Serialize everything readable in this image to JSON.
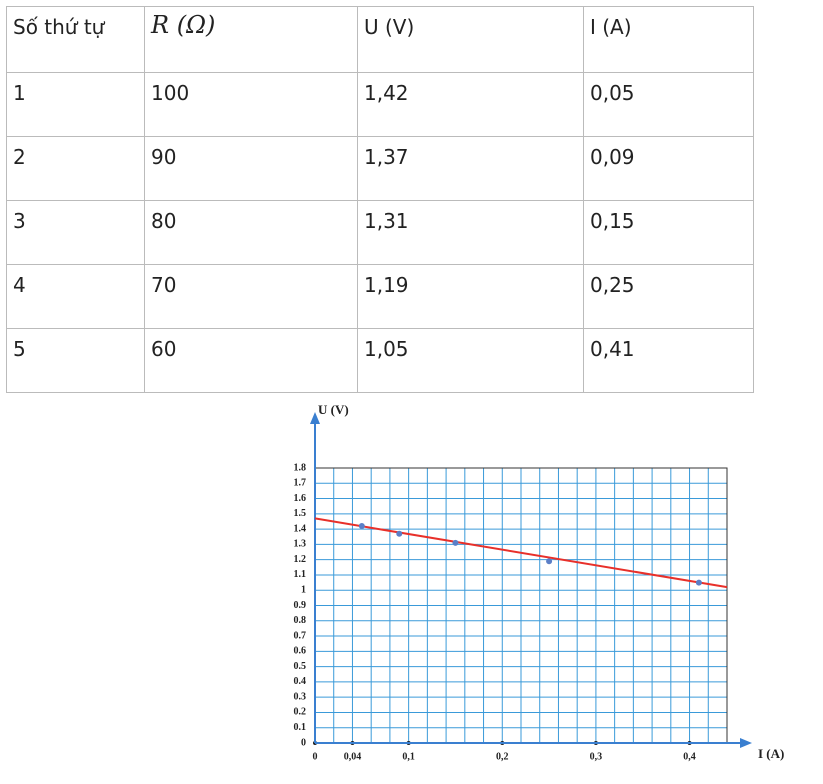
{
  "table": {
    "header": [
      "Số thứ tự",
      "R (Ω)",
      "U (V)",
      "I (A)"
    ],
    "rows": [
      [
        "1",
        "100",
        "1,42",
        "0,05"
      ],
      [
        "2",
        "90",
        "1,37",
        "0,09"
      ],
      [
        "3",
        "80",
        "1,31",
        "0,15"
      ],
      [
        "4",
        "70",
        "1,19",
        "0,25"
      ],
      [
        "5",
        "60",
        "1,05",
        "0,41"
      ]
    ]
  },
  "chart_data": {
    "type": "scatter",
    "x_label": "I (A)",
    "y_label": "U (V)",
    "x": [
      0.05,
      0.09,
      0.15,
      0.25,
      0.41
    ],
    "values": [
      1.42,
      1.37,
      1.31,
      1.19,
      1.05
    ],
    "color": "#5b7fc7",
    "fit_line": {
      "x": [
        0,
        0.44
      ],
      "values": [
        1.47,
        1.02
      ],
      "color": "#e8302a"
    },
    "xlim": [
      0,
      0.44
    ],
    "ylim": [
      0,
      1.8
    ],
    "xticks": [
      0,
      {
        "value": 0.04,
        "label": "0,04"
      },
      {
        "value": 0.1,
        "label": "0,1"
      },
      {
        "value": 0.2,
        "label": "0,2"
      },
      {
        "value": 0.3,
        "label": "0,3"
      },
      {
        "value": 0.4,
        "label": "0,4"
      }
    ],
    "yticks": [
      0,
      0.1,
      0.2,
      0.3,
      0.4,
      0.5,
      0.6,
      0.7,
      0.8,
      0.9,
      1,
      1.1,
      1.2,
      1.3,
      1.4,
      1.5,
      1.6,
      1.7,
      1.8
    ],
    "grid": true,
    "grid_color": "#3a9ad9"
  }
}
